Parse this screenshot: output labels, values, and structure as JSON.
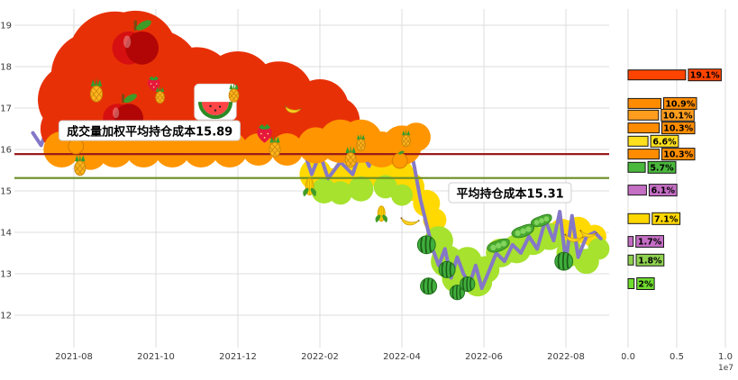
{
  "chart_data": {
    "type": "line",
    "title": "",
    "price_axis": {
      "ticks": [
        12,
        13,
        14,
        15,
        16,
        17,
        18,
        19
      ],
      "range": [
        11.2,
        19.4
      ]
    },
    "time_axis": {
      "ticks": [
        "2021-08",
        "2021-10",
        "2021-12",
        "2022-02",
        "2022-04",
        "2022-06",
        "2022-08"
      ],
      "tick_months": [
        1,
        3,
        5,
        7,
        9,
        11,
        13
      ]
    },
    "price_line": {
      "color": "#8577c8",
      "points": [
        [
          0,
          16.4
        ],
        [
          0.2,
          16.1
        ],
        [
          0.5,
          16.9
        ],
        [
          0.8,
          16.4
        ],
        [
          1,
          17.1
        ],
        [
          1.2,
          16.6
        ],
        [
          1.5,
          17.4
        ],
        [
          1.7,
          16.9
        ],
        [
          1.9,
          17.6
        ],
        [
          2.1,
          17
        ],
        [
          2.4,
          17.4
        ],
        [
          2.7,
          16.6
        ],
        [
          3,
          17.2
        ],
        [
          3.3,
          16.6
        ],
        [
          3.6,
          16.2
        ],
        [
          3.9,
          16.6
        ],
        [
          4.2,
          16.1
        ],
        [
          4.5,
          16.4
        ],
        [
          4.8,
          16
        ],
        [
          5.1,
          16.5
        ],
        [
          5.4,
          16.1
        ],
        [
          5.7,
          16.4
        ],
        [
          6,
          16.2
        ],
        [
          6.3,
          16.5
        ],
        [
          6.6,
          16
        ],
        [
          6.8,
          15.4
        ],
        [
          7,
          15.9
        ],
        [
          7.2,
          15.3
        ],
        [
          7.5,
          15.7
        ],
        [
          7.8,
          15.4
        ],
        [
          8,
          16
        ],
        [
          8.2,
          15.6
        ],
        [
          8.4,
          16.3
        ],
        [
          8.6,
          15.7
        ],
        [
          8.8,
          16.35
        ],
        [
          9,
          15.8
        ],
        [
          9.15,
          16.3
        ],
        [
          9.3,
          15.6
        ],
        [
          9.45,
          14.8
        ],
        [
          9.6,
          14.2
        ],
        [
          9.75,
          13.6
        ],
        [
          9.9,
          13.2
        ],
        [
          10.05,
          13.6
        ],
        [
          10.2,
          12.9
        ],
        [
          10.35,
          13.4
        ],
        [
          10.5,
          13
        ],
        [
          10.65,
          12.75
        ],
        [
          10.8,
          13.2
        ],
        [
          10.95,
          12.65
        ],
        [
          11.1,
          13
        ],
        [
          11.3,
          13.5
        ],
        [
          11.5,
          13.3
        ],
        [
          11.7,
          13.7
        ],
        [
          11.9,
          13.5
        ],
        [
          12.1,
          13.9
        ],
        [
          12.3,
          13.6
        ],
        [
          12.5,
          14.3
        ],
        [
          12.7,
          13.8
        ],
        [
          12.85,
          14.5
        ],
        [
          13,
          13.3
        ],
        [
          13.15,
          14.4
        ],
        [
          13.3,
          13.4
        ],
        [
          13.5,
          13.9
        ],
        [
          13.7,
          14
        ],
        [
          13.85,
          13.85
        ]
      ]
    },
    "cost_lines": [
      {
        "label": "成交量加权平均持仓成本15.89",
        "value": 15.89,
        "color": "#9b1b1b"
      },
      {
        "label": "平均持仓成本15.31",
        "value": 15.31,
        "color": "#6b8e23"
      }
    ],
    "annotations": [
      {
        "text": "成交量加权平均持仓成本15.89",
        "m": 2.85,
        "p": 16.46
      },
      {
        "text": "平均持仓成本15.31",
        "m": 11.64,
        "p": 14.96
      }
    ],
    "volume_profile": {
      "x_ticks": [
        "0.0",
        "0.5",
        "1.0"
      ],
      "offset_label": "1e7",
      "bars": [
        {
          "price": 17.8,
          "label": "19.1%",
          "value": 0.592,
          "color": "#ff4400"
        },
        {
          "price": 17.11,
          "label": "10.9%",
          "value": 0.338,
          "color": "#ff8c00"
        },
        {
          "price": 16.83,
          "label": "10.1%",
          "value": 0.313,
          "color": "#ff9d1e"
        },
        {
          "price": 16.52,
          "label": "10.3%",
          "value": 0.319,
          "color": "#ff8c00"
        },
        {
          "price": 16.2,
          "label": "6.6%",
          "value": 0.205,
          "color": "#ffe01e"
        },
        {
          "price": 15.89,
          "label": "10.3%",
          "value": 0.319,
          "color": "#ff8c00"
        },
        {
          "price": 15.57,
          "label": "5.7%",
          "value": 0.177,
          "color": "#49b83c"
        },
        {
          "price": 15.02,
          "label": "6.1%",
          "value": 0.189,
          "color": "#c46ec4"
        },
        {
          "price": 14.33,
          "label": "7.1%",
          "value": 0.22,
          "color": "#ffd700"
        },
        {
          "price": 13.78,
          "label": "1.7%",
          "value": 0.053,
          "color": "#c46ec4"
        },
        {
          "price": 13.33,
          "label": "1.8%",
          "value": 0.056,
          "color": "#8fd14f"
        },
        {
          "price": 12.76,
          "label": "2%",
          "value": 0.062,
          "color": "#6fdd2f"
        }
      ]
    },
    "decor": {
      "clusters": [
        {
          "color": "#e83007",
          "circles": [
            [
              1,
              17.2,
              40
            ],
            [
              1.5,
              17.8,
              48
            ],
            [
              2,
              18.2,
              52
            ],
            [
              2.5,
              18.35,
              46
            ],
            [
              2.2,
              17.2,
              46
            ],
            [
              3,
              17.8,
              50
            ],
            [
              3.5,
              17.2,
              46
            ],
            [
              4,
              17.6,
              40
            ],
            [
              4.5,
              17.3,
              42
            ],
            [
              5,
              17.5,
              40
            ],
            [
              5.5,
              17,
              40
            ],
            [
              6,
              17.3,
              38
            ],
            [
              6.5,
              16.9,
              36
            ],
            [
              7,
              17,
              32
            ],
            [
              7.4,
              16.7,
              26
            ],
            [
              0.8,
              16.5,
              28
            ],
            [
              1.8,
              16.5,
              30
            ],
            [
              3.2,
              16.4,
              28
            ],
            [
              5.2,
              16.4,
              26
            ],
            [
              6.2,
              16.4,
              24
            ]
          ]
        },
        {
          "color": "#ff9500",
          "circles": [
            [
              0.7,
              16,
              20
            ],
            [
              1.4,
              15.9,
              18
            ],
            [
              2,
              16,
              20
            ],
            [
              2.7,
              16,
              20
            ],
            [
              3.4,
              16,
              20
            ],
            [
              4.1,
              16,
              20
            ],
            [
              4.8,
              16,
              20
            ],
            [
              5.5,
              16,
              18
            ],
            [
              6.2,
              16,
              18
            ],
            [
              6.9,
              16.1,
              20
            ],
            [
              7.5,
              16.2,
              24
            ],
            [
              8,
              16.2,
              24
            ],
            [
              8.5,
              16,
              20
            ],
            [
              9,
              16.1,
              22
            ],
            [
              9.35,
              16.3,
              16
            ]
          ]
        },
        {
          "color": "#ffd900",
          "circles": [
            [
              6.9,
              15.4,
              18
            ],
            [
              7.3,
              15.2,
              16
            ],
            [
              7.7,
              15.4,
              18
            ],
            [
              8.1,
              15.5,
              20
            ],
            [
              8.5,
              15.6,
              20
            ],
            [
              8.9,
              15.4,
              18
            ],
            [
              9.2,
              15.1,
              16
            ],
            [
              9.6,
              14.7,
              15
            ],
            [
              9.8,
              14.3,
              13
            ],
            [
              12.9,
              14,
              15
            ],
            [
              13.3,
              14.05,
              15
            ],
            [
              13.7,
              13.9,
              13
            ]
          ]
        },
        {
          "color": "#a6e22e",
          "circles": [
            [
              7.1,
              15,
              14
            ],
            [
              7.5,
              14.95,
              13
            ],
            [
              8,
              15.05,
              14
            ],
            [
              8.6,
              15.1,
              13
            ],
            [
              9,
              14.9,
              12
            ],
            [
              9.9,
              13.8,
              16
            ],
            [
              10.1,
              13.3,
              18
            ],
            [
              10.35,
              12.9,
              17
            ],
            [
              10.6,
              13.3,
              16
            ],
            [
              10.85,
              12.8,
              16
            ],
            [
              11.05,
              13.1,
              15
            ],
            [
              11.4,
              13.5,
              16
            ],
            [
              11.8,
              13.6,
              16
            ],
            [
              12.2,
              13.8,
              16
            ],
            [
              12.6,
              13.9,
              15
            ],
            [
              13.1,
              13.5,
              15
            ],
            [
              13.5,
              13.3,
              14
            ],
            [
              13.8,
              13.6,
              12
            ]
          ]
        }
      ],
      "fruits": [
        {
          "type": "apple",
          "m": 2.5,
          "p": 18.5,
          "s": 46
        },
        {
          "type": "apple",
          "m": 2.2,
          "p": 16.8,
          "s": 40
        },
        {
          "type": "pineapple",
          "m": 1.55,
          "p": 17.4,
          "s": 22
        },
        {
          "type": "tangerine",
          "m": 1.05,
          "p": 16.1,
          "s": 20
        },
        {
          "type": "pineapple",
          "m": 1.15,
          "p": 15.6,
          "s": 20
        },
        {
          "type": "strawberry",
          "m": 2.95,
          "p": 17.6,
          "s": 18
        },
        {
          "type": "pineapple",
          "m": 3.1,
          "p": 17.3,
          "s": 16
        },
        {
          "type": "watermelon-slice",
          "m": 4.45,
          "p": 17.15,
          "s": 34,
          "card": true
        },
        {
          "type": "pineapple",
          "m": 4.9,
          "p": 17.35,
          "s": 18
        },
        {
          "type": "strawberry",
          "m": 5.65,
          "p": 16.4,
          "s": 22
        },
        {
          "type": "pineapple",
          "m": 5.9,
          "p": 16.05,
          "s": 20
        },
        {
          "type": "banana",
          "m": 6.35,
          "p": 17,
          "s": 18
        },
        {
          "type": "corn",
          "m": 6.75,
          "p": 15.1,
          "s": 22
        },
        {
          "type": "pineapple",
          "m": 7.75,
          "p": 15.8,
          "s": 20
        },
        {
          "type": "pineapple",
          "m": 8,
          "p": 16.15,
          "s": 16
        },
        {
          "type": "corn",
          "m": 8.5,
          "p": 14.45,
          "s": 20
        },
        {
          "type": "tangerine",
          "m": 8.95,
          "p": 15.75,
          "s": 20
        },
        {
          "type": "pineapple",
          "m": 9.1,
          "p": 16.25,
          "s": 16
        },
        {
          "type": "banana",
          "m": 9.2,
          "p": 14.3,
          "s": 20
        },
        {
          "type": "watermelon",
          "m": 9.6,
          "p": 13.7,
          "s": 22
        },
        {
          "type": "watermelon",
          "m": 9.65,
          "p": 12.7,
          "s": 20
        },
        {
          "type": "watermelon",
          "m": 10.1,
          "p": 13.1,
          "s": 20
        },
        {
          "type": "watermelon",
          "m": 10.35,
          "p": 12.55,
          "s": 18
        },
        {
          "type": "watermelon",
          "m": 10.6,
          "p": 12.75,
          "s": 18
        },
        {
          "type": "pea",
          "m": 11.35,
          "p": 13.7,
          "s": 26
        },
        {
          "type": "pea",
          "m": 11.95,
          "p": 14.05,
          "s": 26
        },
        {
          "type": "pea",
          "m": 12.4,
          "p": 14.3,
          "s": 24
        },
        {
          "type": "watermelon",
          "m": 12.95,
          "p": 13.3,
          "s": 22
        },
        {
          "type": "banana",
          "m": 13.2,
          "p": 13.9,
          "s": 20
        },
        {
          "type": "banana",
          "m": 13.55,
          "p": 14,
          "s": 18
        }
      ]
    }
  }
}
